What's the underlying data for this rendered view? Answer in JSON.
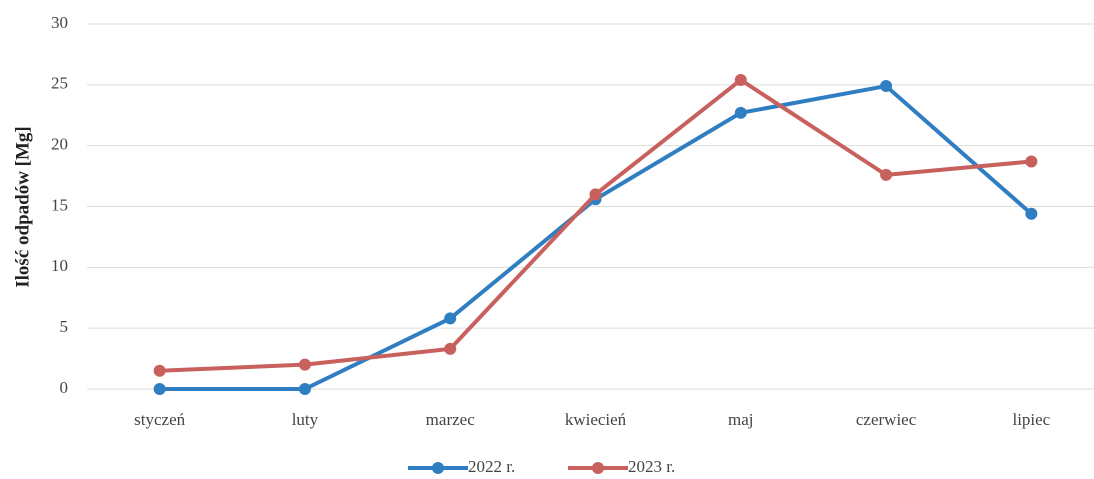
{
  "chart_data": {
    "type": "line",
    "y_label": "Ilość odpadów [Mg]",
    "categories": [
      "styczeń",
      "luty",
      "marzec",
      "kwiecień",
      "maj",
      "czerwiec",
      "lipiec"
    ],
    "series": [
      {
        "name": "2022 r.",
        "color": "#2f7ec1",
        "values": [
          0,
          0,
          5.8,
          15.6,
          22.7,
          24.9,
          14.4
        ]
      },
      {
        "name": "2023 r.",
        "color": "#c8605d",
        "values": [
          1.5,
          2.0,
          3.3,
          16.0,
          25.4,
          17.6,
          18.7
        ]
      }
    ],
    "ylim": [
      0,
      30
    ],
    "yticks": [
      0,
      5,
      10,
      15,
      20,
      25,
      30
    ],
    "grid": true,
    "legend": "bottom"
  }
}
